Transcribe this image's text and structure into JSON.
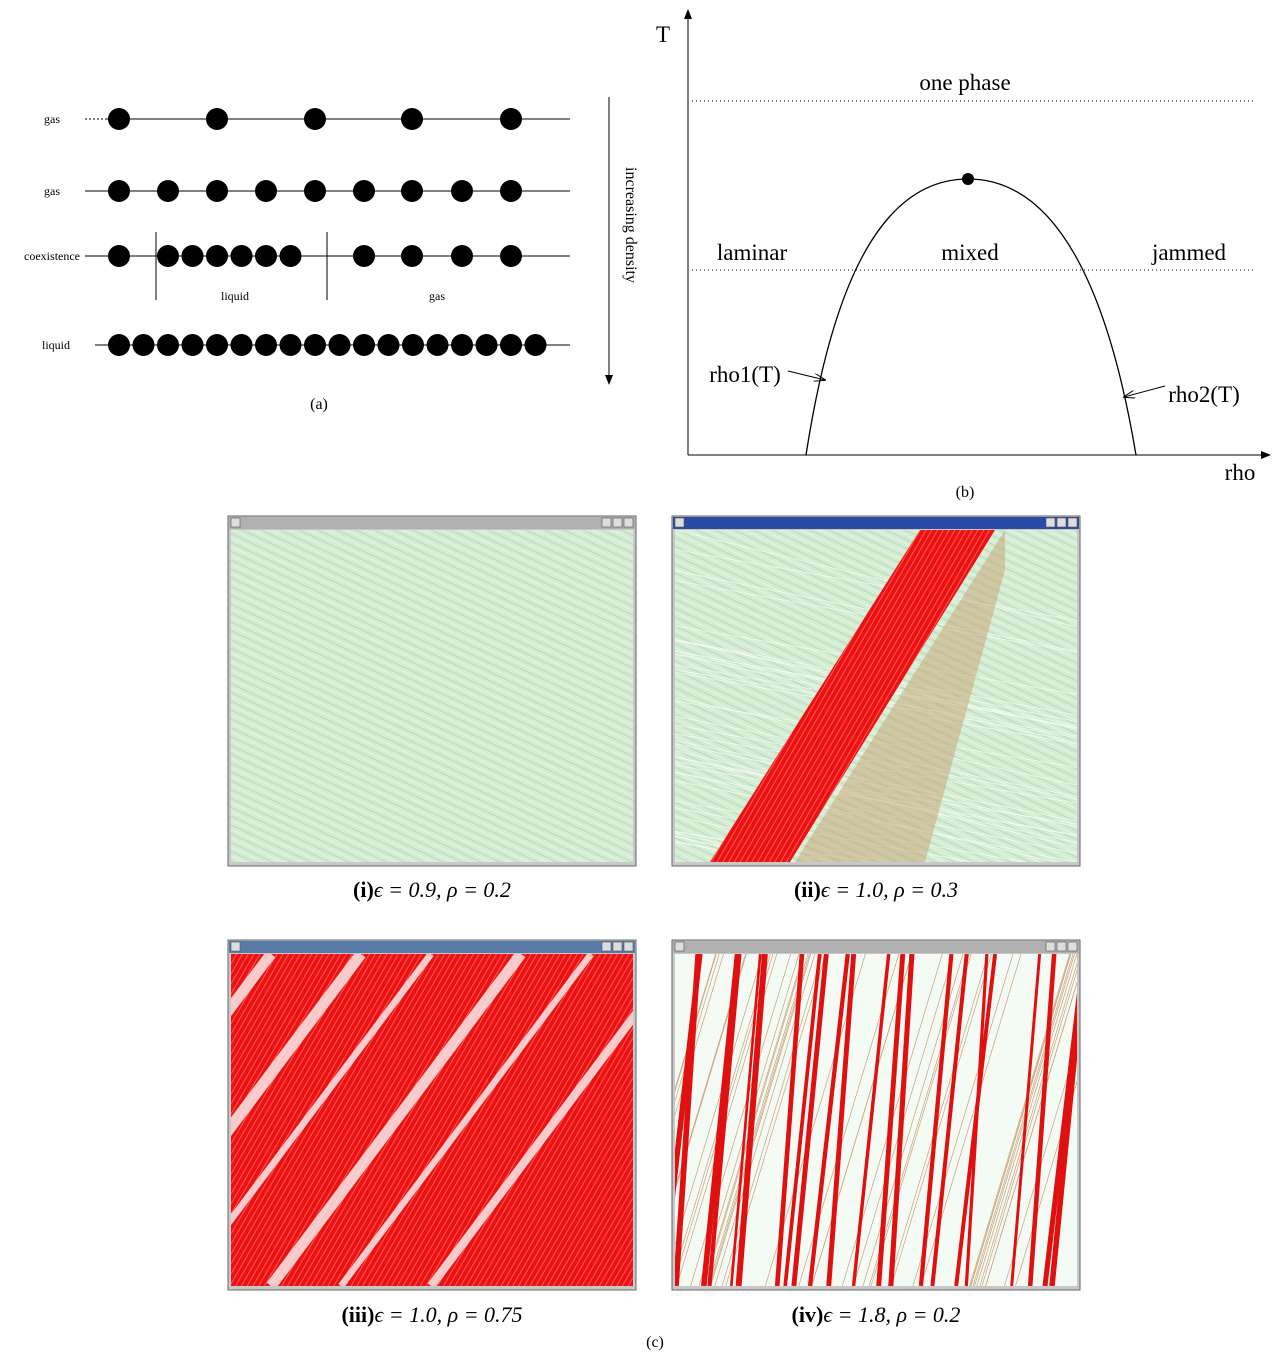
{
  "panel_a": {
    "rows": [
      {
        "label": "gas"
      },
      {
        "label": "gas"
      },
      {
        "label": "coexistence"
      },
      {
        "label": "liquid"
      }
    ],
    "coexistence_labels": [
      "liquid",
      "gas"
    ],
    "axis_label": "increasing density",
    "caption": "(a)"
  },
  "panel_b": {
    "y_label": "T",
    "x_label": "rho",
    "top_region": "one phase",
    "regions": [
      "laminar",
      "mixed",
      "jammed"
    ],
    "curve_labels": [
      "rho1(T)",
      "rho2(T)"
    ],
    "caption": "(b)"
  },
  "panel_c": {
    "windows": [
      {
        "tag": "(i)",
        "params": "ϵ = 0.9,  ρ = 0.2"
      },
      {
        "tag": "(ii)",
        "params": "ϵ = 1.0,  ρ = 0.3"
      },
      {
        "tag": "(iii)",
        "params": "ϵ = 1.0,  ρ = 0.75"
      },
      {
        "tag": "(iv)",
        "params": "ϵ = 1.8,  ρ = 0.2"
      }
    ],
    "caption": "(c)"
  }
}
